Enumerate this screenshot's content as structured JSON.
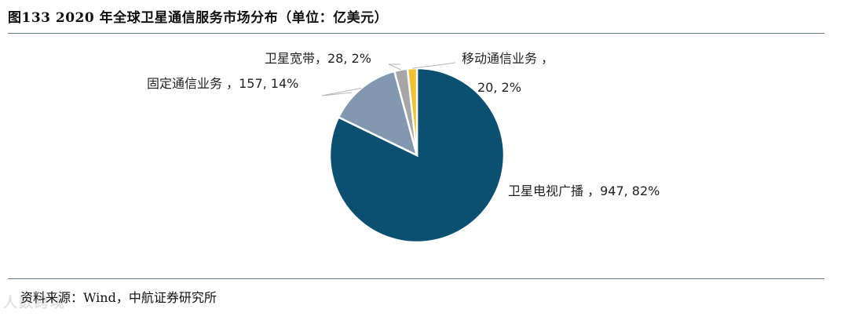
{
  "header": {
    "title": "图133  2020 年全球卫星通信服务市场分布（单位：亿美元）"
  },
  "footer": {
    "source": "资料来源：Wind，中航证券研究所",
    "watermark": "人数跨境"
  },
  "chart_data": {
    "type": "pie",
    "title": "图133  2020 年全球卫星通信服务市场分布（单位：亿美元）",
    "unit": "亿美元",
    "slices": [
      {
        "name": "卫星电视广播",
        "value": 947,
        "percent": "82%",
        "color": "#0b4f71",
        "label": "卫星电视广播 ，947, 82%"
      },
      {
        "name": "固定通信业务",
        "value": 157,
        "percent": "14%",
        "color": "#8298b0",
        "label": "固定通信业务 ，157, 14%"
      },
      {
        "name": "卫星宽带",
        "value": 28,
        "percent": "2%",
        "color": "#a6a6a6",
        "label": "卫星宽带，28, 2%"
      },
      {
        "name": "移动通信业务",
        "value": 20,
        "percent": "2%",
        "color": "#f2c12e",
        "label_line1": "移动通信业务 ，",
        "label_line2": "20, 2%"
      }
    ],
    "legend": "none",
    "labels": "outside with leader lines"
  }
}
